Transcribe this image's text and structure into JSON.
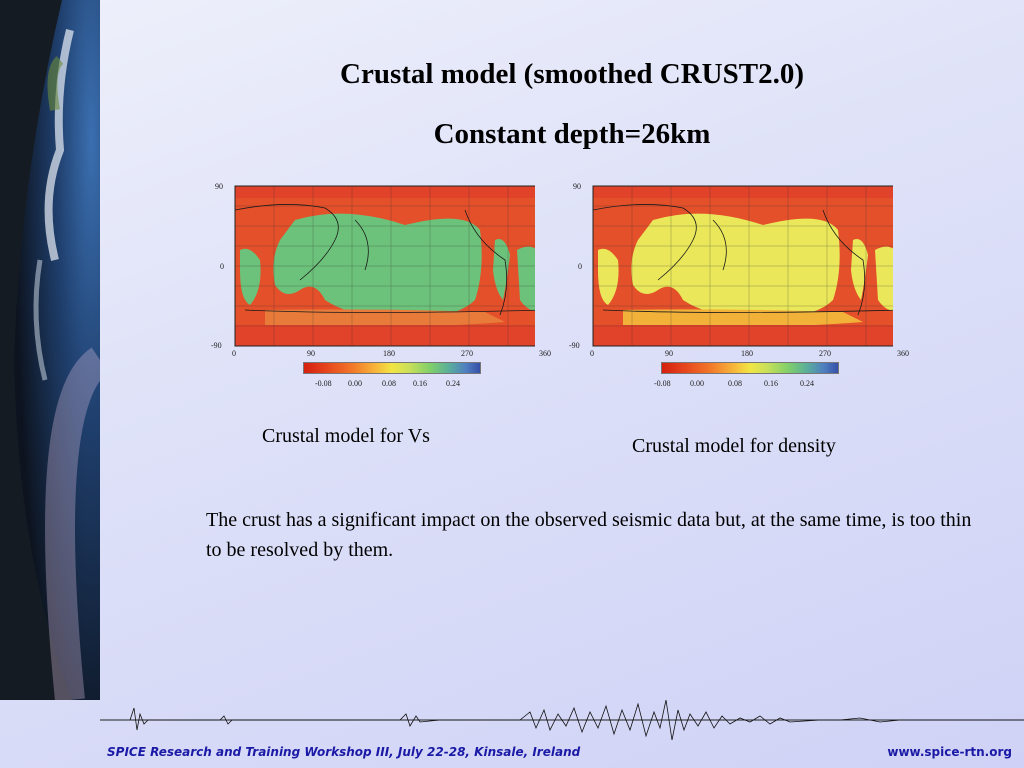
{
  "title_line1": "Crustal model (smoothed CRUST2.0)",
  "title_line2": "Constant depth=26km",
  "maps": {
    "y_ticks": [
      "90",
      "0",
      "-90"
    ],
    "x_ticks": [
      "0",
      "90",
      "180",
      "270",
      "360"
    ],
    "colorbar_ticks": [
      "-0.08",
      "0.00",
      "0.08",
      "0.16",
      "0.24"
    ],
    "colors": {
      "ocean_vs": "#6cc27a",
      "ocean_density": "#eae85a",
      "continent": "#e4502a",
      "polar": "#e0422a"
    }
  },
  "caption_vs": "Crustal model for Vs",
  "caption_density": "Crustal model for density",
  "body_text": "The crust has a significant impact on the observed seismic data but, at the same time, is too thin to be resolved by them.",
  "footer": {
    "left": "SPICE Research and Training Workshop III, July 22-28, Kinsale, Ireland",
    "right": "www.spice-rtn.org"
  }
}
